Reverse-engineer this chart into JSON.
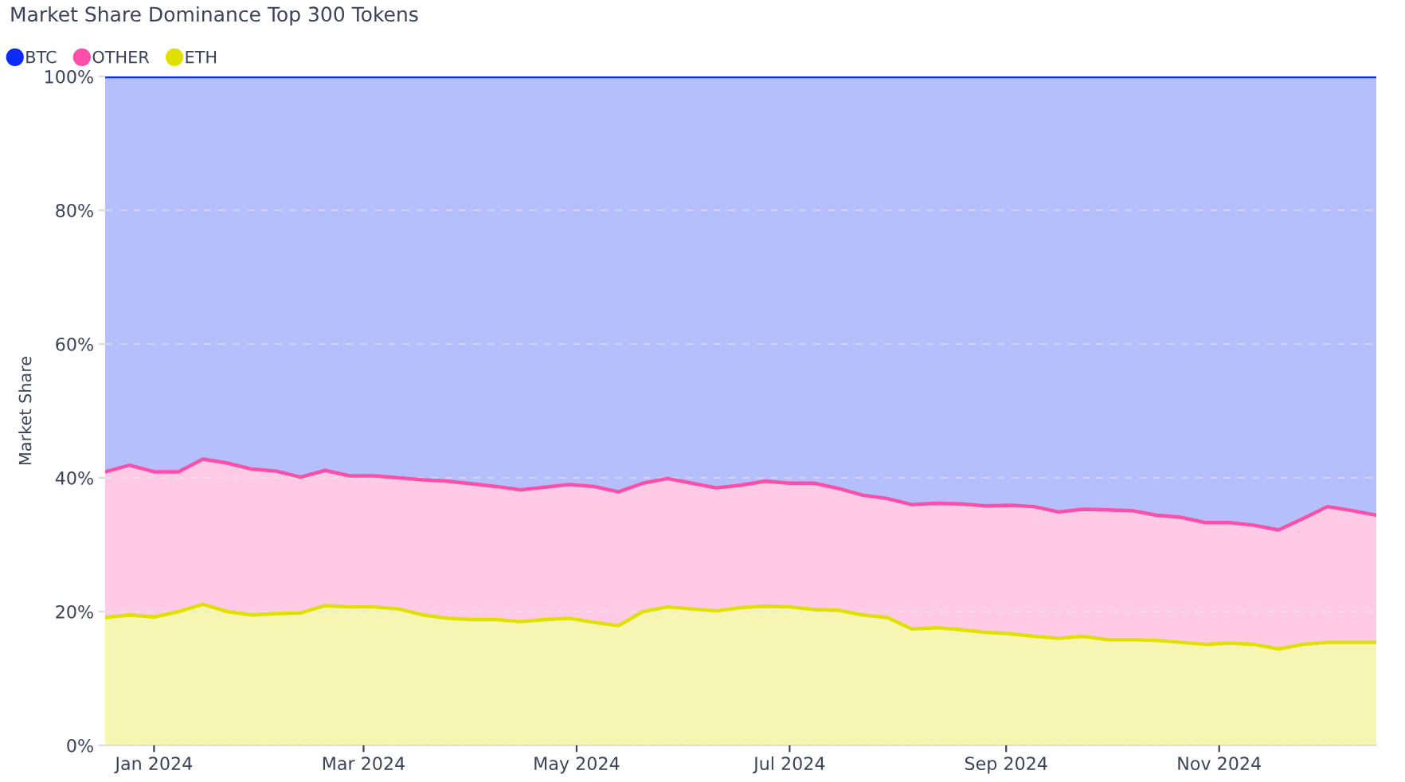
{
  "chart_data": {
    "type": "area",
    "title": "Market Share Dominance Top 300 Tokens",
    "ylabel": "Market Share",
    "stacked": true,
    "x": [
      "2023-12-18",
      "2023-12-25",
      "2024-01-01",
      "2024-01-08",
      "2024-01-15",
      "2024-01-22",
      "2024-01-29",
      "2024-02-05",
      "2024-02-12",
      "2024-02-19",
      "2024-02-26",
      "2024-03-04",
      "2024-03-11",
      "2024-03-18",
      "2024-03-25",
      "2024-04-01",
      "2024-04-08",
      "2024-04-15",
      "2024-04-22",
      "2024-04-29",
      "2024-05-06",
      "2024-05-13",
      "2024-05-20",
      "2024-05-27",
      "2024-06-03",
      "2024-06-10",
      "2024-06-17",
      "2024-06-24",
      "2024-07-01",
      "2024-07-08",
      "2024-07-15",
      "2024-07-22",
      "2024-07-29",
      "2024-08-05",
      "2024-08-12",
      "2024-08-19",
      "2024-08-26",
      "2024-09-02",
      "2024-09-09",
      "2024-09-16",
      "2024-09-23",
      "2024-09-30",
      "2024-10-07",
      "2024-10-14",
      "2024-10-21",
      "2024-10-28",
      "2024-11-04",
      "2024-11-11",
      "2024-11-18",
      "2024-11-25",
      "2024-12-02",
      "2024-12-09",
      "2024-12-16"
    ],
    "series": [
      {
        "name": "ETH",
        "color": "#e0e000",
        "values": [
          19.1,
          19.5,
          19.2,
          20.0,
          21.1,
          20.0,
          19.5,
          19.7,
          19.8,
          20.9,
          20.7,
          20.7,
          20.4,
          19.5,
          19.0,
          18.8,
          18.8,
          18.5,
          18.8,
          19.0,
          18.4,
          17.9,
          20.0,
          20.7,
          20.4,
          20.1,
          20.6,
          20.8,
          20.7,
          20.3,
          20.2,
          19.5,
          19.1,
          17.4,
          17.6,
          17.3,
          16.9,
          16.7,
          16.3,
          16.0,
          16.3,
          15.8,
          15.8,
          15.7,
          15.4,
          15.1,
          15.3,
          15.1,
          14.4,
          15.1,
          15.4,
          15.4,
          15.4
        ]
      },
      {
        "name": "OTHER",
        "color": "#ff4fa8",
        "values": [
          21.8,
          22.4,
          21.7,
          20.9,
          21.7,
          22.2,
          21.8,
          21.3,
          20.3,
          20.2,
          19.6,
          19.6,
          19.6,
          20.2,
          20.5,
          20.3,
          19.9,
          19.7,
          19.8,
          20.0,
          20.3,
          20.0,
          19.2,
          19.2,
          18.8,
          18.4,
          18.3,
          18.7,
          18.5,
          18.9,
          18.2,
          17.9,
          17.8,
          18.6,
          18.6,
          18.8,
          18.9,
          19.2,
          19.4,
          18.9,
          19.0,
          19.4,
          19.3,
          18.7,
          18.7,
          18.2,
          18.0,
          17.8,
          17.8,
          18.8,
          20.3,
          19.7,
          19.0
        ]
      },
      {
        "name": "BTC",
        "color": "#0a2cf5",
        "values": [
          59.1,
          58.1,
          59.1,
          59.1,
          57.2,
          57.8,
          58.7,
          59.0,
          59.9,
          58.9,
          59.7,
          59.7,
          60.0,
          60.3,
          60.5,
          60.9,
          61.3,
          61.8,
          61.4,
          61.0,
          61.3,
          62.1,
          60.8,
          60.1,
          60.8,
          61.5,
          61.1,
          60.5,
          60.8,
          60.8,
          61.6,
          62.6,
          63.1,
          64.0,
          63.8,
          63.9,
          64.2,
          64.1,
          64.3,
          65.1,
          64.7,
          64.8,
          64.9,
          65.6,
          65.9,
          66.7,
          66.7,
          67.1,
          67.8,
          66.1,
          64.3,
          64.9,
          65.6
        ]
      }
    ],
    "xlim": [
      "2023-12-18",
      "2024-12-16"
    ],
    "xticks": [
      {
        "value": "2024-01-01",
        "label": "Jan 2024"
      },
      {
        "value": "2024-03-01",
        "label": "Mar 2024"
      },
      {
        "value": "2024-05-01",
        "label": "May 2024"
      },
      {
        "value": "2024-07-01",
        "label": "Jul 2024"
      },
      {
        "value": "2024-09-01",
        "label": "Sep 2024"
      },
      {
        "value": "2024-11-01",
        "label": "Nov 2024"
      }
    ],
    "ylim": [
      0,
      100
    ],
    "yticks": [
      {
        "value": 0,
        "label": "0%"
      },
      {
        "value": 20,
        "label": "20%"
      },
      {
        "value": 40,
        "label": "40%"
      },
      {
        "value": 60,
        "label": "60%"
      },
      {
        "value": 80,
        "label": "80%"
      },
      {
        "value": 100,
        "label": "100%"
      }
    ],
    "grid": "y",
    "legend": "top left",
    "marker": "none",
    "line_style": "solid"
  }
}
